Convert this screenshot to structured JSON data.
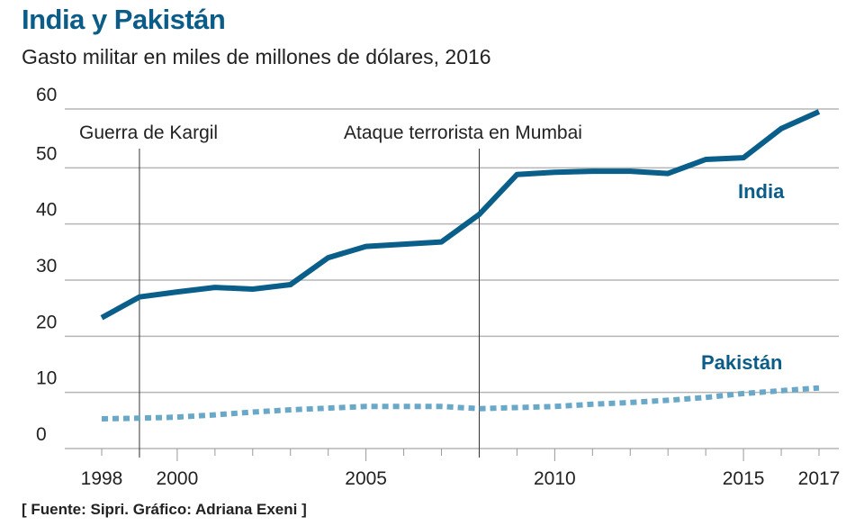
{
  "header": {
    "title": "India y Pakistán",
    "subtitle": "Gasto militar en miles de millones de dólares, 2016"
  },
  "footer": {
    "source": "[ Fuente: Sipri. Gráfico: Adriana Exeni ]"
  },
  "colors": {
    "title": "#0c5c88",
    "india": "#0a5e8a",
    "pakistan": "#6aa8c8",
    "grid": "#b5b5b5",
    "annotation_line": "#333333"
  },
  "chart_data": {
    "type": "line",
    "title": "India y Pakistán",
    "subtitle": "Gasto militar en miles de millones de dólares, 2016",
    "xlabel": "",
    "ylabel": "",
    "xlim": [
      1998,
      2017
    ],
    "ylim": [
      0,
      60
    ],
    "grid": true,
    "y_ticks": [
      0,
      10,
      20,
      30,
      40,
      50,
      60
    ],
    "x_ticks": [
      1998,
      1999,
      2000,
      2001,
      2002,
      2003,
      2004,
      2005,
      2006,
      2007,
      2008,
      2009,
      2010,
      2011,
      2012,
      2013,
      2014,
      2015,
      2016,
      2017
    ],
    "x_tick_labels": [
      1998,
      2000,
      2005,
      2010,
      2015,
      2017
    ],
    "x": [
      1998,
      1999,
      2000,
      2001,
      2002,
      2003,
      2004,
      2005,
      2006,
      2007,
      2008,
      2009,
      2010,
      2011,
      2012,
      2013,
      2014,
      2015,
      2016,
      2017
    ],
    "series": [
      {
        "name": "India",
        "style": "solid",
        "values": [
          23.3,
          27.0,
          27.9,
          28.7,
          28.4,
          29.2,
          34.0,
          36.0,
          36.4,
          36.8,
          41.7,
          48.8,
          49.2,
          49.4,
          49.4,
          49.0,
          51.5,
          51.8,
          57.0,
          60.0
        ]
      },
      {
        "name": "Pakistán",
        "style": "dotted",
        "values": [
          5.3,
          5.4,
          5.6,
          6.0,
          6.5,
          6.9,
          7.2,
          7.5,
          7.5,
          7.5,
          7.1,
          7.3,
          7.5,
          7.9,
          8.2,
          8.6,
          9.1,
          9.8,
          10.3,
          10.8
        ]
      }
    ],
    "annotations": [
      {
        "label": "Guerra de Kargil",
        "x": 1999
      },
      {
        "label": "Ataque terrorista en Mumbai",
        "x": 2008
      }
    ],
    "legend": "inline-labels"
  }
}
